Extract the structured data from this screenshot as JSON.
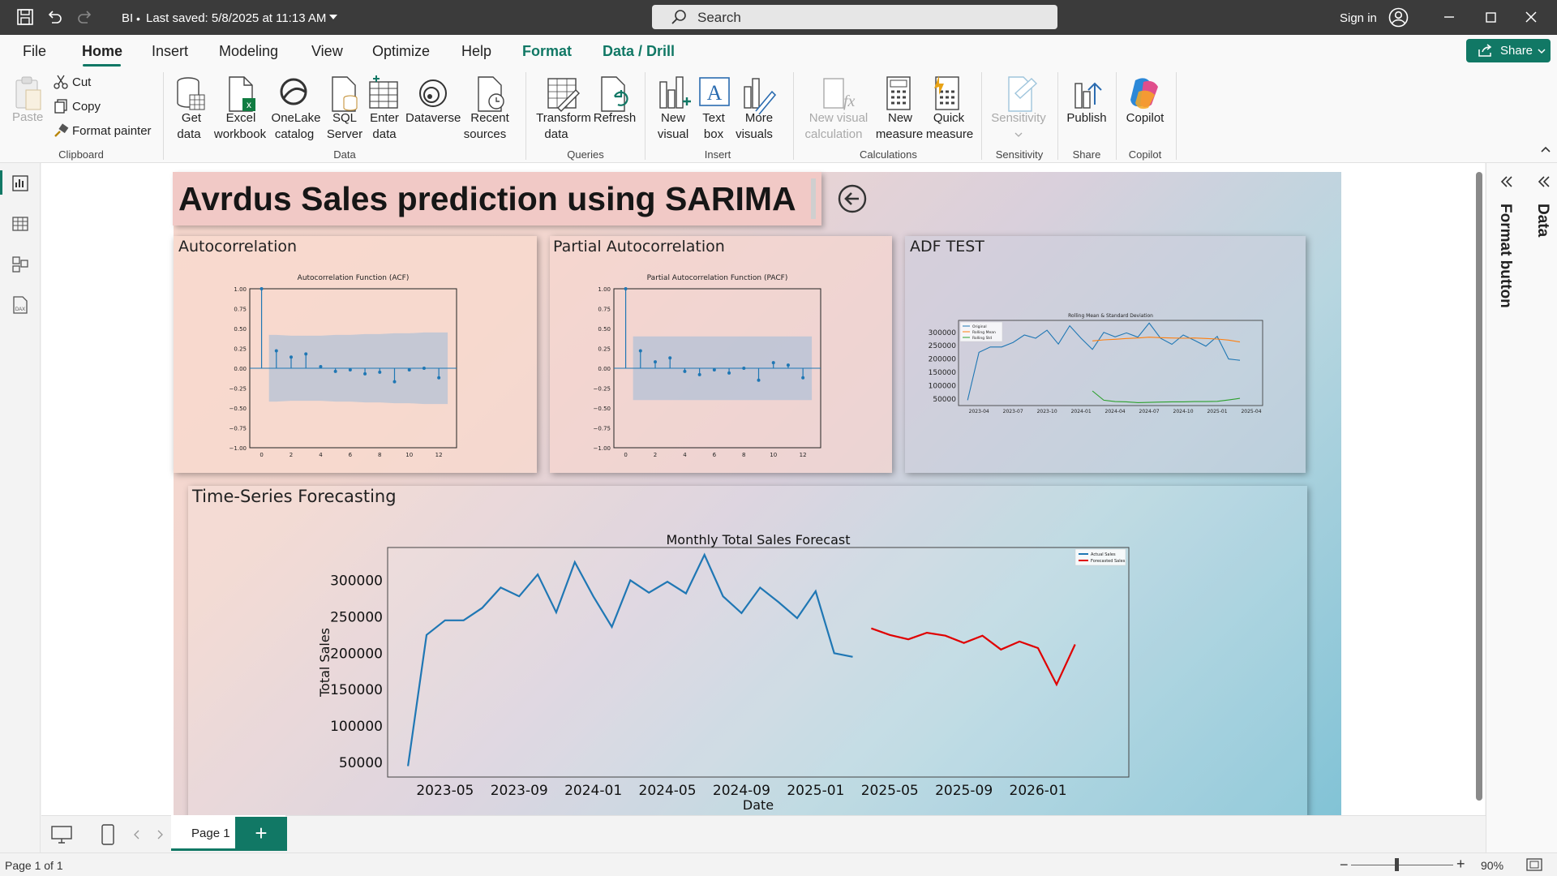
{
  "titlebar": {
    "doc": "BI",
    "saved": "Last saved: 5/8/2025 at 11:13 AM",
    "search_placeholder": "Search",
    "sign_in": "Sign in"
  },
  "menu": {
    "tabs": [
      "File",
      "Home",
      "Insert",
      "Modeling",
      "View",
      "Optimize",
      "Help",
      "Format",
      "Data / Drill"
    ],
    "share": "Share"
  },
  "ribbon": {
    "clipboard": {
      "paste": "Paste",
      "cut": "Cut",
      "copy": "Copy",
      "format_painter": "Format painter",
      "group": "Clipboard"
    },
    "data": {
      "get_data_1": "Get",
      "get_data_2": "data",
      "excel_1": "Excel",
      "excel_2": "workbook",
      "onelake_1": "OneLake",
      "onelake_2": "catalog",
      "sql_1": "SQL",
      "sql_2": "Server",
      "enter_1": "Enter",
      "enter_2": "data",
      "dataverse": "Dataverse",
      "recent_1": "Recent",
      "recent_2": "sources",
      "group": "Data"
    },
    "queries": {
      "transform_1": "Transform",
      "transform_2": "data",
      "refresh": "Refresh",
      "group": "Queries"
    },
    "insert": {
      "new_visual_1": "New",
      "new_visual_2": "visual",
      "text_box_1": "Text",
      "text_box_2": "box",
      "more_1": "More",
      "more_2": "visuals",
      "group": "Insert"
    },
    "calculations": {
      "nvc_1": "New visual",
      "nvc_2": "calculation",
      "nm_1": "New",
      "nm_2": "measure",
      "qm_1": "Quick",
      "qm_2": "measure",
      "group": "Calculations"
    },
    "sensitivity": {
      "label": "Sensitivity",
      "group": "Sensitivity"
    },
    "share": {
      "publish": "Publish",
      "group": "Share"
    },
    "copilot": {
      "label": "Copilot",
      "group": "Copilot"
    }
  },
  "report": {
    "title": "Avrdus Sales prediction using SARIMA",
    "acf_title": "Autocorrelation",
    "pacf_title": "Partial Autocorrelation",
    "adf_title": "ADF TEST",
    "ts_title": "Time-Series Forecasting"
  },
  "chart_data": [
    {
      "type": "bar",
      "title": "Autocorrelation Function (ACF)",
      "x": [
        0,
        1,
        2,
        3,
        4,
        5,
        6,
        7,
        8,
        9,
        10,
        11,
        12
      ],
      "values": [
        1.0,
        0.22,
        0.14,
        0.18,
        0.02,
        -0.04,
        -0.02,
        -0.07,
        -0.05,
        -0.17,
        -0.02,
        0.0,
        -0.12
      ],
      "ylim": [
        -1.0,
        1.0
      ],
      "yticks": [
        "1.00",
        "0.75",
        "0.50",
        "0.25",
        "0.00",
        "−0.25",
        "−0.50",
        "−0.75",
        "−1.00"
      ],
      "xticks": [
        "0",
        "2",
        "4",
        "6",
        "8",
        "10",
        "12"
      ],
      "conf_band": [
        0.42,
        0.42,
        0.41,
        0.41,
        0.41,
        0.42,
        0.42,
        0.43,
        0.43,
        0.44,
        0.44,
        0.45,
        0.45
      ]
    },
    {
      "type": "bar",
      "title": "Partial Autocorrelation Function (PACF)",
      "x": [
        0,
        1,
        2,
        3,
        4,
        5,
        6,
        7,
        8,
        9,
        10,
        11,
        12
      ],
      "values": [
        1.0,
        0.22,
        0.08,
        0.13,
        -0.04,
        -0.08,
        -0.02,
        -0.06,
        0.0,
        -0.15,
        0.07,
        0.04,
        -0.12
      ],
      "ylim": [
        -1.0,
        1.0
      ],
      "yticks": [
        "1.00",
        "0.75",
        "0.50",
        "0.25",
        "0.00",
        "−0.25",
        "−0.50",
        "−0.75",
        "−1.00"
      ],
      "xticks": [
        "0",
        "2",
        "4",
        "6",
        "8",
        "10",
        "12"
      ],
      "conf_band": 0.4
    },
    {
      "type": "line",
      "title": "Rolling Mean & Standard Deviation",
      "x": [
        "2023-03",
        "2023-04",
        "2023-05",
        "2023-06",
        "2023-07",
        "2023-08",
        "2023-09",
        "2023-10",
        "2023-11",
        "2023-12",
        "2024-01",
        "2024-02",
        "2024-03",
        "2024-04",
        "2024-05",
        "2024-06",
        "2024-07",
        "2024-08",
        "2024-09",
        "2024-10",
        "2024-11",
        "2024-12",
        "2025-01",
        "2025-02",
        "2025-03"
      ],
      "xticks": [
        "2023-04",
        "2023-07",
        "2023-10",
        "2024-01",
        "2024-04",
        "2024-07",
        "2024-10",
        "2025-01",
        "2025-04"
      ],
      "yticks": [
        "300000",
        "250000",
        "200000",
        "150000",
        "100000",
        "50000"
      ],
      "series": [
        {
          "name": "Original",
          "color": "#1f77b4",
          "values": [
            45000,
            225000,
            245000,
            245000,
            262000,
            290000,
            278000,
            308000,
            256000,
            325000,
            278000,
            236000,
            300000,
            283000,
            298000,
            282000,
            335000,
            278000,
            255000,
            290000,
            270000,
            248000,
            285000,
            200000,
            195000
          ]
        },
        {
          "name": "Rolling Mean",
          "color": "#ff7f0e",
          "values": [
            null,
            null,
            null,
            null,
            null,
            null,
            null,
            null,
            null,
            null,
            null,
            268000,
            272000,
            274000,
            277000,
            279000,
            282000,
            280000,
            279000,
            278000,
            279000,
            277000,
            275000,
            271000,
            264000
          ]
        },
        {
          "name": "Rolling Std",
          "color": "#2ca02c",
          "values": [
            null,
            null,
            null,
            null,
            null,
            null,
            null,
            null,
            null,
            null,
            null,
            80000,
            45000,
            40000,
            39000,
            36000,
            37000,
            38000,
            39000,
            39000,
            40000,
            40000,
            41000,
            46000,
            52000
          ]
        }
      ]
    },
    {
      "type": "line",
      "title": "Monthly Total Sales Forecast",
      "xlabel": "Date",
      "ylabel": "Total Sales",
      "ylim": [
        30000,
        345000
      ],
      "yticks": [
        "300000",
        "250000",
        "200000",
        "150000",
        "100000",
        "50000"
      ],
      "xticks": [
        "2023-05",
        "2023-09",
        "2024-01",
        "2024-05",
        "2024-09",
        "2025-01",
        "2025-05",
        "2025-09",
        "2026-01"
      ],
      "series": [
        {
          "name": "Actual Sales",
          "color": "#1f77b4",
          "x": [
            "2023-03",
            "2023-04",
            "2023-05",
            "2023-06",
            "2023-07",
            "2023-08",
            "2023-09",
            "2023-10",
            "2023-11",
            "2023-12",
            "2024-01",
            "2024-02",
            "2024-03",
            "2024-04",
            "2024-05",
            "2024-06",
            "2024-07",
            "2024-08",
            "2024-09",
            "2024-10",
            "2024-11",
            "2024-12",
            "2025-01",
            "2025-02",
            "2025-03"
          ],
          "values": [
            45000,
            225000,
            245000,
            245000,
            262000,
            290000,
            278000,
            308000,
            256000,
            325000,
            278000,
            236000,
            300000,
            283000,
            298000,
            282000,
            335000,
            278000,
            255000,
            290000,
            270000,
            248000,
            285000,
            200000,
            195000
          ]
        },
        {
          "name": "Forecasted Sales",
          "color": "#e00000",
          "x": [
            "2025-04",
            "2025-05",
            "2025-06",
            "2025-07",
            "2025-08",
            "2025-09",
            "2025-10",
            "2025-11",
            "2025-12",
            "2026-01",
            "2026-02",
            "2026-03"
          ],
          "values": [
            234000,
            225000,
            219000,
            228000,
            224000,
            214000,
            224000,
            205000,
            216000,
            207000,
            157000,
            212000
          ]
        }
      ]
    }
  ],
  "pages": {
    "tab": "Page 1",
    "status": "Page 1 of 1",
    "zoom": "90%"
  },
  "right_pane": {
    "format": "Format button",
    "data": "Data"
  },
  "colors": {
    "accent": "#117865",
    "titlebar": "#3b3b3b"
  }
}
